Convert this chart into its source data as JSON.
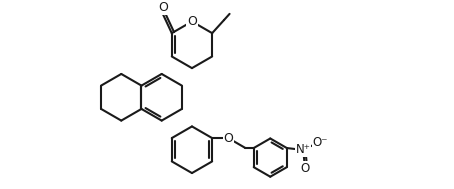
{
  "bg_color": "#ffffff",
  "line_color": "#1a1a1a",
  "line_width": 1.5,
  "figsize": [
    4.54,
    1.89
  ],
  "dpi": 100,
  "xlim": [
    -0.3,
    10.8
  ],
  "ylim": [
    -0.2,
    5.8
  ]
}
